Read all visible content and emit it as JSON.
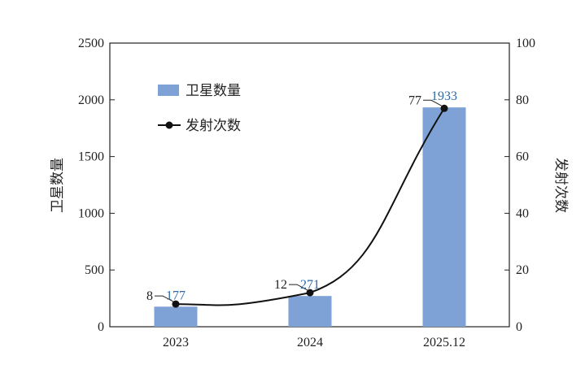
{
  "chart_data": {
    "type": "bar",
    "categories": [
      "2023",
      "2024",
      "2025.12"
    ],
    "series": [
      {
        "name": "卫星数量",
        "kind": "bar",
        "axis": "left",
        "values": [
          177,
          271,
          1933
        ],
        "color": "#7fa2d6",
        "label_color": "#2d6aa8"
      },
      {
        "name": "发射次数",
        "kind": "line",
        "axis": "right",
        "values": [
          8,
          12,
          77
        ],
        "color": "#111111"
      }
    ],
    "ylabel": "卫星数量",
    "y2label": "发射次数",
    "ylim": [
      0,
      2500
    ],
    "y2lim": [
      0,
      100
    ],
    "yticks": [
      0,
      500,
      1000,
      1500,
      2000,
      2500
    ],
    "y2ticks": [
      0,
      20,
      40,
      60,
      80,
      100
    ],
    "grid": false,
    "legend_position": "top-left"
  }
}
